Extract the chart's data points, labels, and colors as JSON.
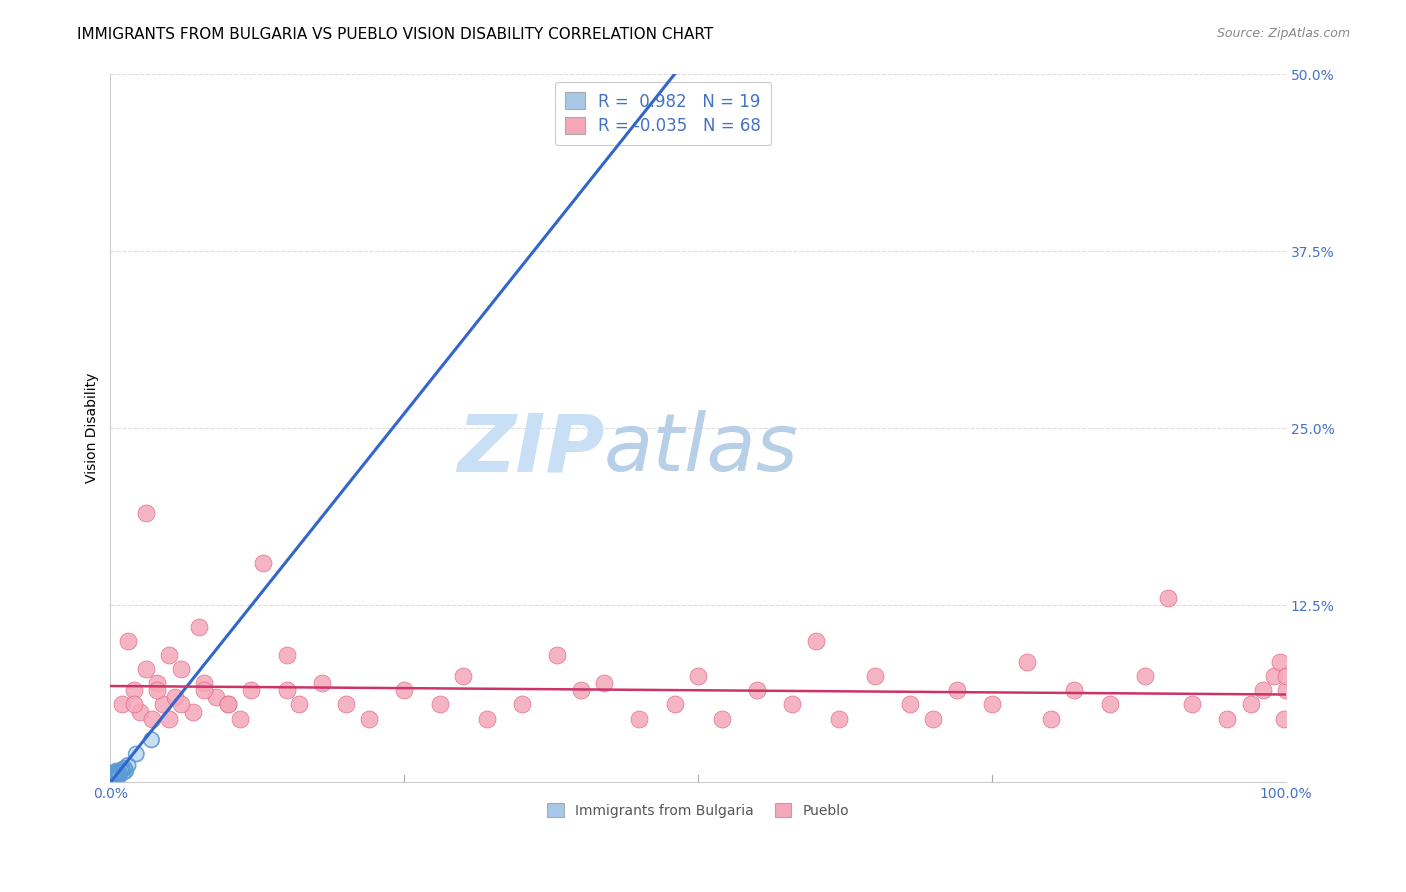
{
  "title": "IMMIGRANTS FROM BULGARIA VS PUEBLO VISION DISABILITY CORRELATION CHART",
  "source": "Source: ZipAtlas.com",
  "ylabel": "Vision Disability",
  "xlim": [
    0.0,
    1.0
  ],
  "ylim": [
    0.0,
    0.5
  ],
  "yticks": [
    0.0,
    0.125,
    0.25,
    0.375,
    0.5
  ],
  "ytick_labels": [
    "",
    "12.5%",
    "25.0%",
    "37.5%",
    "50.0%"
  ],
  "xticks": [
    0.0,
    0.25,
    0.5,
    0.75,
    1.0
  ],
  "xtick_labels": [
    "0.0%",
    "",
    "",
    "",
    "100.0%"
  ],
  "grid_color": "#dddddd",
  "background_color": "#ffffff",
  "blue_color": "#a8c8e8",
  "blue_edge_color": "#5b9bd5",
  "pink_color": "#f4a7b9",
  "pink_edge_color": "#e06080",
  "blue_line_color": "#3366cc",
  "pink_line_color": "#cc3366",
  "blue_R": 0.982,
  "blue_N": 19,
  "pink_R": -0.035,
  "pink_N": 68,
  "legend_label_blue": "Immigrants from Bulgaria",
  "legend_label_pink": "Pueblo",
  "blue_line_x0": 0.0,
  "blue_line_y0": 0.0,
  "blue_line_x1": 0.48,
  "blue_line_y1": 0.5,
  "pink_line_x0": 0.0,
  "pink_line_y0": 0.068,
  "pink_line_x1": 1.0,
  "pink_line_y1": 0.062,
  "blue_scatter_x": [
    0.002,
    0.003,
    0.003,
    0.004,
    0.004,
    0.005,
    0.005,
    0.006,
    0.007,
    0.007,
    0.008,
    0.009,
    0.01,
    0.011,
    0.012,
    0.013,
    0.015,
    0.022,
    0.035
  ],
  "blue_scatter_y": [
    0.005,
    0.003,
    0.006,
    0.004,
    0.007,
    0.005,
    0.008,
    0.006,
    0.004,
    0.007,
    0.006,
    0.008,
    0.009,
    0.007,
    0.01,
    0.008,
    0.012,
    0.02,
    0.03
  ],
  "pink_scatter_x": [
    0.01,
    0.015,
    0.02,
    0.025,
    0.03,
    0.035,
    0.04,
    0.045,
    0.05,
    0.055,
    0.06,
    0.07,
    0.075,
    0.08,
    0.09,
    0.1,
    0.11,
    0.12,
    0.13,
    0.15,
    0.16,
    0.18,
    0.2,
    0.22,
    0.25,
    0.28,
    0.3,
    0.32,
    0.35,
    0.38,
    0.4,
    0.42,
    0.45,
    0.48,
    0.5,
    0.52,
    0.55,
    0.58,
    0.6,
    0.62,
    0.65,
    0.68,
    0.7,
    0.72,
    0.75,
    0.78,
    0.8,
    0.82,
    0.85,
    0.88,
    0.9,
    0.92,
    0.95,
    0.97,
    0.98,
    0.99,
    0.995,
    0.998,
    1.0,
    1.0,
    0.02,
    0.03,
    0.04,
    0.05,
    0.06,
    0.08,
    0.1,
    0.15
  ],
  "pink_scatter_y": [
    0.055,
    0.1,
    0.065,
    0.05,
    0.08,
    0.045,
    0.07,
    0.055,
    0.09,
    0.06,
    0.08,
    0.05,
    0.11,
    0.07,
    0.06,
    0.055,
    0.045,
    0.065,
    0.155,
    0.065,
    0.055,
    0.07,
    0.055,
    0.045,
    0.065,
    0.055,
    0.075,
    0.045,
    0.055,
    0.09,
    0.065,
    0.07,
    0.045,
    0.055,
    0.075,
    0.045,
    0.065,
    0.055,
    0.1,
    0.045,
    0.075,
    0.055,
    0.045,
    0.065,
    0.055,
    0.085,
    0.045,
    0.065,
    0.055,
    0.075,
    0.13,
    0.055,
    0.045,
    0.055,
    0.065,
    0.075,
    0.085,
    0.045,
    0.065,
    0.075,
    0.055,
    0.19,
    0.065,
    0.045,
    0.055,
    0.065,
    0.055,
    0.09
  ],
  "title_fontsize": 11,
  "axis_label_fontsize": 10,
  "tick_fontsize": 10,
  "tick_color": "#4472c4",
  "source_fontsize": 9,
  "source_color": "#888888"
}
